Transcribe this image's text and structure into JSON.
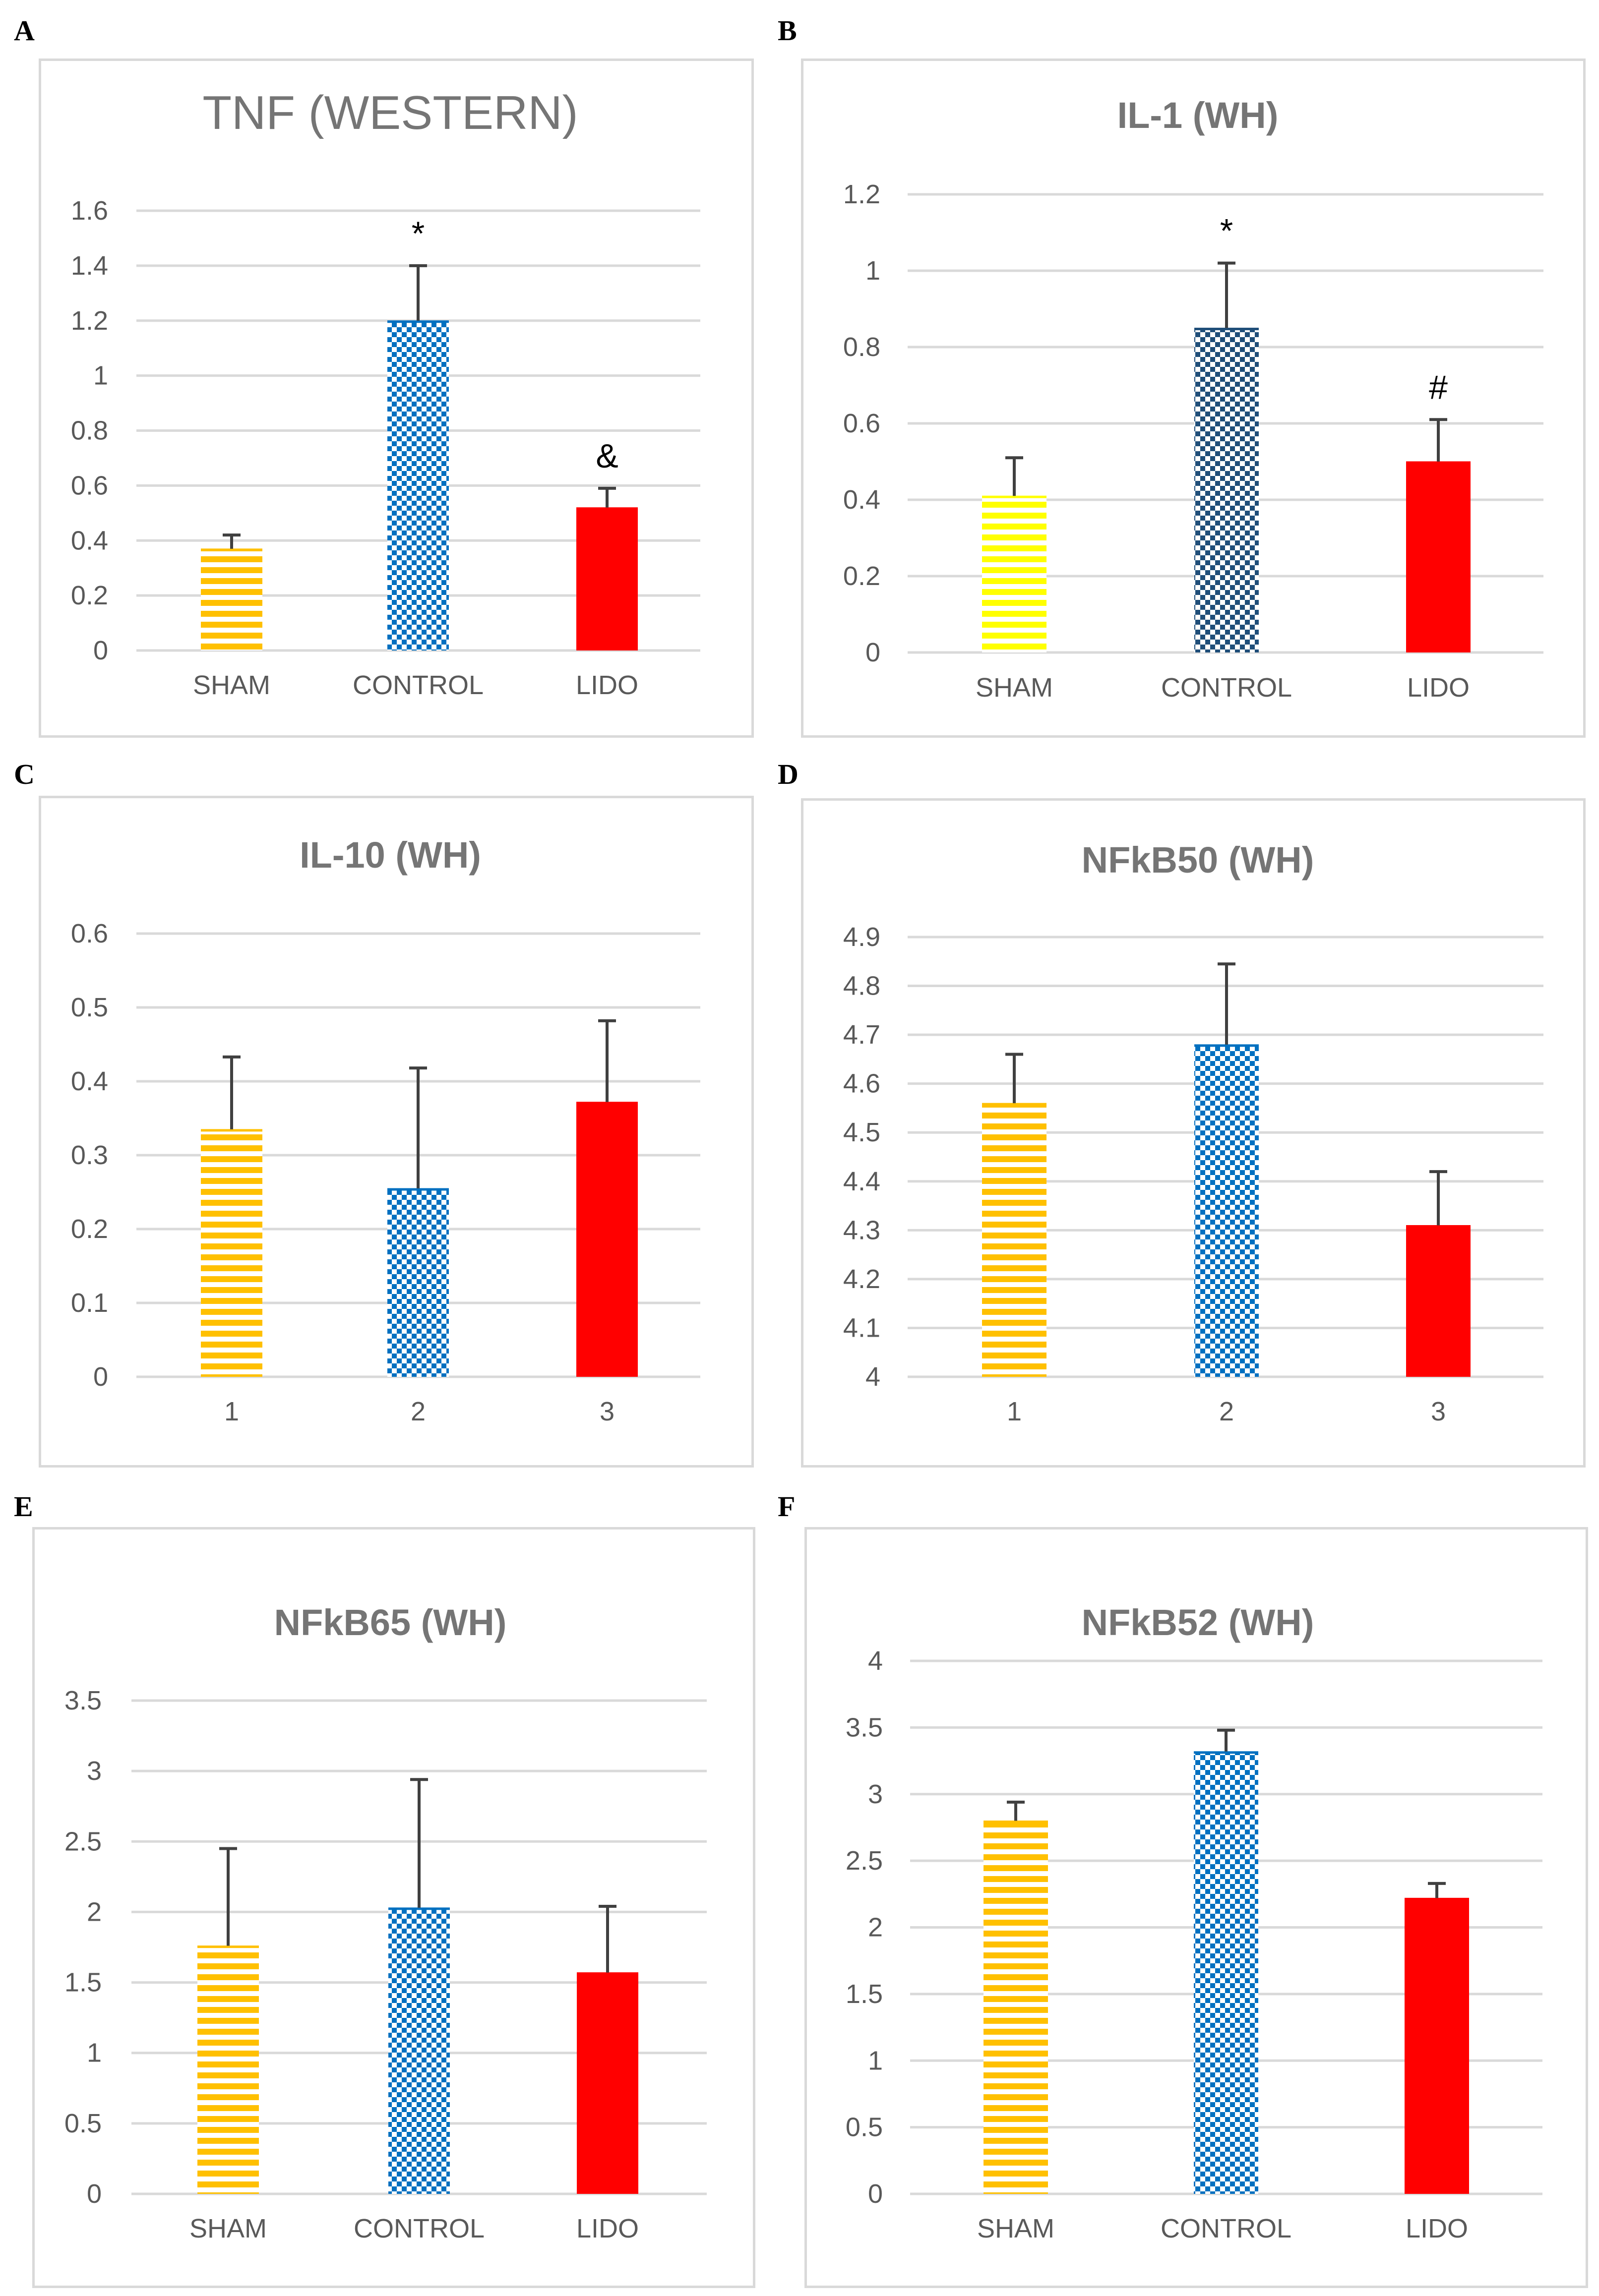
{
  "colors": {
    "sham": "#ffc000",
    "sham_bright": "#ffff00",
    "control": "#0070c0",
    "control_dark": "#1f4e79",
    "lido": "#ff0000",
    "grid": "#d9d9d9",
    "text": "#595959",
    "title": "#757575"
  },
  "chart_data": [
    {
      "panel": "A",
      "type": "bar",
      "title": "TNF (WESTERN)",
      "categories": [
        "SHAM",
        "CONTROL",
        "LIDO"
      ],
      "values": [
        0.37,
        1.2,
        0.52
      ],
      "errors": [
        0.05,
        0.2,
        0.07
      ],
      "annotations": [
        "",
        "*",
        "&"
      ],
      "yticks": [
        "0",
        "0.2",
        "0.4",
        "0.6",
        "0.8",
        "1",
        "1.2",
        "1.4",
        "1.6"
      ],
      "ylim": [
        0,
        1.6
      ],
      "xlabel": "",
      "ylabel": ""
    },
    {
      "panel": "B",
      "type": "bar",
      "title": "IL-1 (WH)",
      "categories": [
        "SHAM",
        "CONTROL",
        "LIDO"
      ],
      "values": [
        0.41,
        0.85,
        0.5
      ],
      "errors": [
        0.1,
        0.17,
        0.11
      ],
      "annotations": [
        "",
        "*",
        "#"
      ],
      "yticks": [
        "0",
        "0.2",
        "0.4",
        "0.6",
        "0.8",
        "1",
        "1.2"
      ],
      "ylim": [
        0,
        1.2
      ],
      "xlabel": "",
      "ylabel": ""
    },
    {
      "panel": "C",
      "type": "bar",
      "title": "IL-10 (WH)",
      "categories": [
        "1",
        "2",
        "3"
      ],
      "values": [
        0.335,
        0.255,
        0.372
      ],
      "errors": [
        0.098,
        0.163,
        0.11
      ],
      "annotations": [
        "",
        "",
        ""
      ],
      "yticks": [
        "0",
        "0.1",
        "0.2",
        "0.3",
        "0.4",
        "0.5",
        "0.6"
      ],
      "ylim": [
        0,
        0.6
      ],
      "xlabel": "",
      "ylabel": ""
    },
    {
      "panel": "D",
      "type": "bar",
      "title": "NFkB50 (WH)",
      "categories": [
        "1",
        "2",
        "3"
      ],
      "values": [
        4.56,
        4.68,
        4.31
      ],
      "errors": [
        0.1,
        0.165,
        0.11
      ],
      "annotations": [
        "",
        "",
        ""
      ],
      "yticks": [
        "4",
        "4.1",
        "4.2",
        "4.3",
        "4.4",
        "4.5",
        "4.6",
        "4.7",
        "4.8",
        "4.9"
      ],
      "ylim": [
        4,
        4.9
      ],
      "xlabel": "",
      "ylabel": ""
    },
    {
      "panel": "E",
      "type": "bar",
      "title": "NFkB65 (WH)",
      "categories": [
        "SHAM",
        "CONTROL",
        "LIDO"
      ],
      "values": [
        1.76,
        2.03,
        1.57
      ],
      "errors": [
        0.69,
        0.91,
        0.47
      ],
      "annotations": [
        "",
        "",
        ""
      ],
      "yticks": [
        "0",
        "0.5",
        "1",
        "1.5",
        "2",
        "2.5",
        "3",
        "3.5"
      ],
      "ylim": [
        0,
        3.5
      ],
      "xlabel": "",
      "ylabel": ""
    },
    {
      "panel": "F",
      "type": "bar",
      "title": "NFkB52 (WH)",
      "categories": [
        "SHAM",
        "CONTROL",
        "LIDO"
      ],
      "values": [
        2.8,
        3.32,
        2.22
      ],
      "errors": [
        0.14,
        0.16,
        0.11
      ],
      "annotations": [
        "",
        "",
        ""
      ],
      "yticks": [
        "0",
        "0.5",
        "1",
        "1.5",
        "2",
        "2.5",
        "3",
        "3.5",
        "4"
      ],
      "ylim": [
        0,
        4
      ],
      "xlabel": "",
      "ylabel": ""
    }
  ]
}
